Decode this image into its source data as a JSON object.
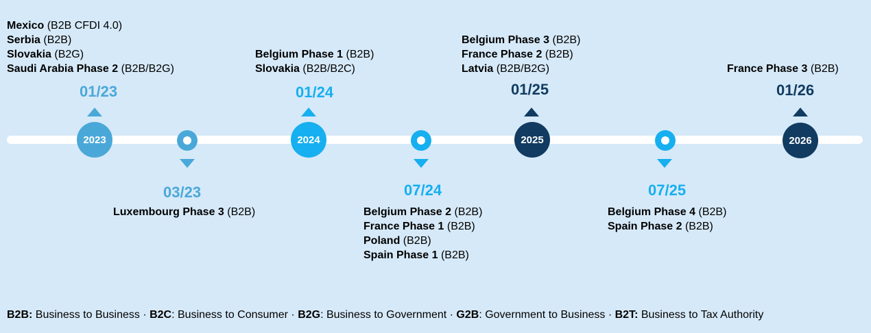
{
  "colors": {
    "year2023": "#4aa8d8",
    "year2024": "#16aff0",
    "year2025": "#113b61",
    "year2026": "#113b61"
  },
  "milestones": [
    {
      "date": "01/23",
      "node_label": "2023",
      "items": [
        {
          "name": "Mexico",
          "scope": "(B2B CFDI 4.0)"
        },
        {
          "name": "Serbia",
          "scope": "(B2B)"
        },
        {
          "name": "Slovakia",
          "scope": "(B2G)"
        },
        {
          "name": "Saudi Arabia Phase 2",
          "scope": "(B2B/B2G)"
        }
      ]
    },
    {
      "date": "03/23",
      "node_label": "",
      "items": [
        {
          "name": "Luxembourg Phase 3",
          "scope": "(B2B)"
        }
      ]
    },
    {
      "date": "01/24",
      "node_label": "2024",
      "items": [
        {
          "name": "Belgium Phase 1",
          "scope": "(B2B)"
        },
        {
          "name": "Slovakia",
          "scope": "(B2B/B2C)"
        }
      ]
    },
    {
      "date": "07/24",
      "node_label": "",
      "items": [
        {
          "name": "Belgium Phase 2",
          "scope": "(B2B)"
        },
        {
          "name": "France Phase 1",
          "scope": "(B2B)"
        },
        {
          "name": "Poland",
          "scope": "(B2B)"
        },
        {
          "name": "Spain Phase 1",
          "scope": "(B2B)"
        }
      ]
    },
    {
      "date": "01/25",
      "node_label": "2025",
      "items": [
        {
          "name": "Belgium Phase 3",
          "scope": "(B2B)"
        },
        {
          "name": "France Phase 2",
          "scope": "(B2B)"
        },
        {
          "name": "Latvia",
          "scope": "(B2B/B2G)"
        }
      ]
    },
    {
      "date": "07/25",
      "node_label": "",
      "items": [
        {
          "name": "Belgium Phase 4",
          "scope": "(B2B)"
        },
        {
          "name": "Spain Phase 2",
          "scope": "(B2B)"
        }
      ]
    },
    {
      "date": "01/26",
      "node_label": "2026",
      "items": [
        {
          "name": "France Phase 3",
          "scope": "(B2B)"
        }
      ]
    }
  ],
  "legend": [
    {
      "term": "B2B:",
      "def": " Business to Business"
    },
    {
      "term": "B2C",
      "def": ": Business to Consumer"
    },
    {
      "term": "B2G",
      "def": ": Business to Government"
    },
    {
      "term": "G2B",
      "def": ": Government to Business"
    },
    {
      "term": "B2T:",
      "def": " Business to Tax Authority"
    }
  ],
  "legend_separator": " · "
}
